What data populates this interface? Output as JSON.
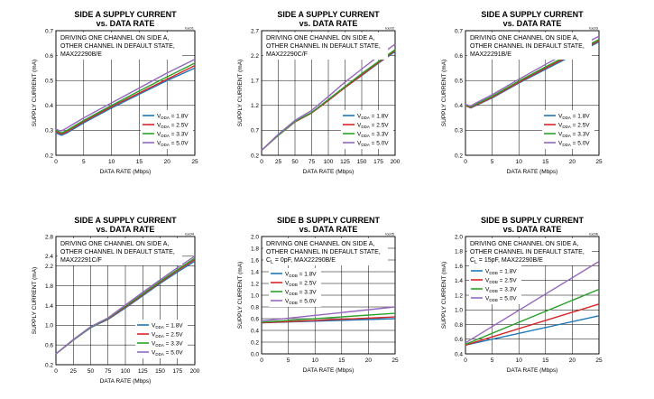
{
  "chart_data": [
    {
      "type": "line",
      "title": "SIDE A SUPPLY CURRENT",
      "subtitle": "vs. DATA RATE",
      "code": "toc01",
      "xlabel": "DATA RATE (Mbps)",
      "ylabel": "SUPPLY CURRENT (mA)",
      "xlim": [
        0,
        25
      ],
      "ylim": [
        0.2,
        0.7
      ],
      "xticks": [
        0,
        5,
        10,
        15,
        20,
        25
      ],
      "yticks": [
        0.2,
        0.3,
        0.4,
        0.5,
        0.6,
        0.7
      ],
      "annotation": [
        "DRIVING ONE CHANNEL ON SIDE A,",
        "OTHER CHANNEL IN DEFAULT STATE,",
        "MAX22290B/E"
      ],
      "legend_position": "lower-right",
      "series": [
        {
          "name": "VDDA = 1.8V",
          "v": "V",
          "sub": "DDA",
          "rest": " = 1.8V",
          "color": "#1f77b4",
          "x": [
            0,
            0.5,
            1,
            2,
            5,
            10,
            15,
            20,
            25
          ],
          "y": [
            0.29,
            0.285,
            0.28,
            0.29,
            0.33,
            0.39,
            0.445,
            0.5,
            0.55
          ]
        },
        {
          "name": "VDDA = 2.5V",
          "v": "V",
          "sub": "DDA",
          "rest": " = 2.5V",
          "color": "#d62728",
          "x": [
            0,
            0.5,
            1,
            2,
            5,
            10,
            15,
            20,
            25
          ],
          "y": [
            0.295,
            0.29,
            0.285,
            0.295,
            0.335,
            0.395,
            0.45,
            0.505,
            0.56
          ]
        },
        {
          "name": "VDDA = 3.3V",
          "v": "V",
          "sub": "DDA",
          "rest": " = 3.3V",
          "color": "#2ca02c",
          "x": [
            0,
            0.5,
            1,
            2,
            5,
            10,
            15,
            20,
            25
          ],
          "y": [
            0.3,
            0.295,
            0.29,
            0.3,
            0.34,
            0.4,
            0.458,
            0.515,
            0.57
          ]
        },
        {
          "name": "VDDA = 5.0V",
          "v": "V",
          "sub": "DDA",
          "rest": " = 5.0V",
          "color": "#9467bd",
          "x": [
            0,
            0.5,
            1,
            2,
            5,
            10,
            15,
            20,
            25
          ],
          "y": [
            0.305,
            0.3,
            0.298,
            0.31,
            0.35,
            0.41,
            0.47,
            0.53,
            0.585
          ]
        }
      ]
    },
    {
      "type": "line",
      "title": "SIDE A SUPPLY CURRENT",
      "subtitle": "vs. DATA RATE",
      "code": "toc02",
      "xlabel": "DATA RATE (Mbps)",
      "ylabel": "SUPPLY CURRENT (mA)",
      "xlim": [
        0,
        200
      ],
      "ylim": [
        0.2,
        2.7
      ],
      "xticks": [
        0,
        25,
        50,
        75,
        100,
        125,
        150,
        175,
        200
      ],
      "yticks": [
        0.2,
        0.7,
        1.2,
        1.7,
        2.2,
        2.7
      ],
      "annotation": [
        "DRIVING ONE CHANNEL ON SIDE A,",
        "OTHER CHANNEL IN DEFAULT STATE,",
        "MAX22290C/F"
      ],
      "legend_position": "lower-right",
      "series": [
        {
          "name": "VDDA = 1.8V",
          "v": "V",
          "sub": "DDA",
          "rest": " = 1.8V",
          "color": "#1f77b4",
          "x": [
            0,
            25,
            50,
            75,
            100,
            125,
            150,
            175,
            200
          ],
          "y": [
            0.3,
            0.6,
            0.87,
            1.05,
            1.3,
            1.56,
            1.8,
            2.05,
            2.28
          ]
        },
        {
          "name": "VDDA = 2.5V",
          "v": "V",
          "sub": "DDA",
          "rest": " = 2.5V",
          "color": "#d62728",
          "x": [
            0,
            25,
            50,
            75,
            100,
            125,
            150,
            175,
            200
          ],
          "y": [
            0.3,
            0.6,
            0.87,
            1.05,
            1.3,
            1.56,
            1.81,
            2.06,
            2.3
          ]
        },
        {
          "name": "VDDA = 3.3V",
          "v": "V",
          "sub": "DDA",
          "rest": " = 3.3V",
          "color": "#2ca02c",
          "x": [
            0,
            25,
            50,
            75,
            100,
            125,
            150,
            175,
            200
          ],
          "y": [
            0.3,
            0.6,
            0.88,
            1.06,
            1.32,
            1.58,
            1.84,
            2.08,
            2.32
          ]
        },
        {
          "name": "VDDA = 5.0V",
          "v": "V",
          "sub": "DDA",
          "rest": " = 5.0V",
          "color": "#9467bd",
          "x": [
            0,
            25,
            50,
            75,
            100,
            125,
            150,
            175,
            200
          ],
          "y": [
            0.3,
            0.62,
            0.9,
            1.1,
            1.38,
            1.67,
            1.93,
            2.19,
            2.43
          ]
        }
      ]
    },
    {
      "type": "line",
      "title": "SIDE A SUPPLY CURRENT",
      "subtitle": "vs. DATA RATE",
      "code": "toc03",
      "xlabel": "DATA RATE (Mbps)",
      "ylabel": "SUPPLY CURRENT (mA)",
      "xlim": [
        0,
        25
      ],
      "ylim": [
        0.2,
        0.7
      ],
      "xticks": [
        0,
        5,
        10,
        15,
        20,
        25
      ],
      "yticks": [
        0.2,
        0.3,
        0.4,
        0.5,
        0.6,
        0.7
      ],
      "annotation": [
        "DRIVING ONE CHANNEL ON SIDE A,",
        "OTHER CHANNEL IN DEFAULT STATE,",
        "MAX22291B/E"
      ],
      "legend_position": "lower-right",
      "series": [
        {
          "name": "VDDA = 1.8V",
          "v": "V",
          "sub": "DDA",
          "rest": " = 1.8V",
          "color": "#1f77b4",
          "x": [
            0,
            0.5,
            1,
            2,
            5,
            10,
            15,
            20,
            25
          ],
          "y": [
            0.4,
            0.395,
            0.39,
            0.4,
            0.43,
            0.49,
            0.545,
            0.6,
            0.655
          ]
        },
        {
          "name": "VDDA = 2.5V",
          "v": "V",
          "sub": "DDA",
          "rest": " = 2.5V",
          "color": "#d62728",
          "x": [
            0,
            0.5,
            1,
            2,
            5,
            10,
            15,
            20,
            25
          ],
          "y": [
            0.4,
            0.395,
            0.392,
            0.402,
            0.433,
            0.493,
            0.55,
            0.605,
            0.66
          ]
        },
        {
          "name": "VDDA = 3.3V",
          "v": "V",
          "sub": "DDA",
          "rest": " = 3.3V",
          "color": "#2ca02c",
          "x": [
            0,
            0.5,
            1,
            2,
            5,
            10,
            15,
            20,
            25
          ],
          "y": [
            0.402,
            0.397,
            0.395,
            0.405,
            0.437,
            0.498,
            0.555,
            0.61,
            0.665
          ]
        },
        {
          "name": "VDDA = 5.0V",
          "v": "V",
          "sub": "DDA",
          "rest": " = 5.0V",
          "color": "#9467bd",
          "x": [
            0,
            0.5,
            1,
            2,
            5,
            10,
            15,
            20,
            25
          ],
          "y": [
            0.405,
            0.4,
            0.398,
            0.41,
            0.443,
            0.505,
            0.565,
            0.622,
            0.678
          ]
        }
      ]
    },
    {
      "type": "line",
      "title": "SIDE A SUPPLY CURRENT",
      "subtitle": "vs. DATA RATE",
      "code": "toc04",
      "xlabel": "DATA RATE (Mbps)",
      "ylabel": "SUPPLY CURRENT (mA)",
      "xlim": [
        0,
        200
      ],
      "ylim": [
        0.2,
        2.8
      ],
      "xticks": [
        0,
        25,
        50,
        75,
        100,
        125,
        150,
        175,
        200
      ],
      "yticks": [
        0.2,
        0.6,
        1.0,
        1.4,
        1.8,
        2.2,
        2.4,
        2.8
      ],
      "ytick_labels": [
        "0.2",
        "0.6",
        "1.0",
        "1.4",
        "1.8",
        "2.2",
        "2.4",
        "2.8"
      ],
      "annotation": [
        "DRIVING ONE CHANNEL ON SIDE A,",
        "OTHER CHANNEL IN DEFAULT STATE,",
        "MAX22291C/F"
      ],
      "legend_position": "lower-right",
      "series": [
        {
          "name": "VDDA = 1.8V",
          "v": "V",
          "sub": "DDA",
          "rest": " = 1.8V",
          "color": "#1f77b4",
          "x": [
            0,
            25,
            50,
            75,
            100,
            125,
            150,
            175,
            200
          ],
          "y": [
            0.42,
            0.7,
            0.95,
            1.12,
            1.35,
            1.6,
            1.85,
            2.08,
            2.3
          ]
        },
        {
          "name": "VDDA = 2.5V",
          "v": "V",
          "sub": "DDA",
          "rest": " = 2.5V",
          "color": "#d62728",
          "x": [
            0,
            25,
            50,
            75,
            100,
            125,
            150,
            175,
            200
          ],
          "y": [
            0.42,
            0.7,
            0.96,
            1.13,
            1.37,
            1.62,
            1.87,
            2.11,
            2.33
          ]
        },
        {
          "name": "VDDA = 3.3V",
          "v": "V",
          "sub": "DDA",
          "rest": " = 3.3V",
          "color": "#2ca02c",
          "x": [
            0,
            25,
            50,
            75,
            100,
            125,
            150,
            175,
            200
          ],
          "y": [
            0.42,
            0.7,
            0.96,
            1.14,
            1.39,
            1.64,
            1.89,
            2.13,
            2.36
          ]
        },
        {
          "name": "VDDA = 5.0V",
          "v": "V",
          "sub": "DDA",
          "rest": " = 5.0V",
          "color": "#9467bd",
          "x": [
            0,
            25,
            50,
            75,
            100,
            125,
            150,
            175,
            200
          ],
          "y": [
            0.42,
            0.71,
            0.97,
            1.15,
            1.41,
            1.67,
            1.92,
            2.17,
            2.4
          ]
        }
      ]
    },
    {
      "type": "line",
      "title": "SIDE B SUPPLY CURRENT",
      "subtitle": "vs. DATA RATE",
      "code": "toc05",
      "xlabel": "DATA RATE (Mbps)",
      "ylabel": "SUPPLY CURRENT (mA)",
      "xlim": [
        0,
        25
      ],
      "ylim": [
        0.0,
        2.0
      ],
      "xticks": [
        0,
        5,
        10,
        15,
        20,
        25
      ],
      "yticks": [
        0.0,
        0.2,
        0.4,
        0.6,
        0.8,
        1.0,
        1.2,
        1.4,
        1.6,
        1.8,
        2.0
      ],
      "annotation": [
        "DRIVING ONE CHANNEL ON SIDE A,",
        "OTHER CHANNEL IN DEFAULT STATE,"
      ],
      "annotation_cl": {
        "c": "C",
        "sub": "L",
        "rest": " = 0pF, MAX22290B/E"
      },
      "legend_position": "middle-left",
      "series": [
        {
          "name": "VDDB = 1.8V",
          "v": "V",
          "sub": "DDB",
          "rest": " = 1.8V",
          "color": "#1f77b4",
          "x": [
            0,
            25
          ],
          "y": [
            0.53,
            0.6
          ]
        },
        {
          "name": "VDDB = 2.5V",
          "v": "V",
          "sub": "DDB",
          "rest": " = 2.5V",
          "color": "#d62728",
          "x": [
            0,
            25
          ],
          "y": [
            0.53,
            0.63
          ]
        },
        {
          "name": "VDDB = 3.3V",
          "v": "V",
          "sub": "DDB",
          "rest": " = 3.3V",
          "color": "#2ca02c",
          "x": [
            0,
            25
          ],
          "y": [
            0.54,
            0.69
          ]
        },
        {
          "name": "VDDB = 5.0V",
          "v": "V",
          "sub": "DDB",
          "rest": " = 5.0V",
          "color": "#9467bd",
          "x": [
            0,
            25
          ],
          "y": [
            0.56,
            0.8
          ]
        }
      ]
    },
    {
      "type": "line",
      "title": "SIDE B SUPPLY CURRENT",
      "subtitle": "vs. DATA RATE",
      "code": "toc06",
      "xlabel": "DATA RATE (Mbps)",
      "ylabel": "SUPPLY CURRENT (mA)",
      "xlim": [
        0,
        25
      ],
      "ylim": [
        0.4,
        2.0
      ],
      "xticks": [
        0,
        5,
        10,
        15,
        20,
        25
      ],
      "yticks": [
        0.4,
        0.6,
        0.8,
        1.0,
        1.2,
        1.4,
        1.6,
        1.8,
        2.0
      ],
      "annotation": [
        "DRIVING ONE CHANNEL ON SIDE A,",
        "OTHER CHANNEL IN DEFAULT STATE,"
      ],
      "annotation_cl": {
        "c": "C",
        "sub": "L",
        "rest": " = 15pF, MAX22290B/E"
      },
      "legend_position": "upper-left",
      "series": [
        {
          "name": "VDDB = 1.8V",
          "v": "V",
          "sub": "DDB",
          "rest": " = 1.8V",
          "color": "#1f77b4",
          "x": [
            0,
            25
          ],
          "y": [
            0.52,
            0.92
          ]
        },
        {
          "name": "VDDB = 2.5V",
          "v": "V",
          "sub": "DDB",
          "rest": " = 2.5V",
          "color": "#d62728",
          "x": [
            0,
            25
          ],
          "y": [
            0.52,
            1.08
          ]
        },
        {
          "name": "VDDB = 3.3V",
          "v": "V",
          "sub": "DDB",
          "rest": " = 3.3V",
          "color": "#2ca02c",
          "x": [
            0,
            25
          ],
          "y": [
            0.53,
            1.28
          ]
        },
        {
          "name": "VDDB = 5.0V",
          "v": "V",
          "sub": "DDB",
          "rest": " = 5.0V",
          "color": "#9467bd",
          "x": [
            0,
            25
          ],
          "y": [
            0.55,
            1.66
          ]
        }
      ]
    }
  ]
}
